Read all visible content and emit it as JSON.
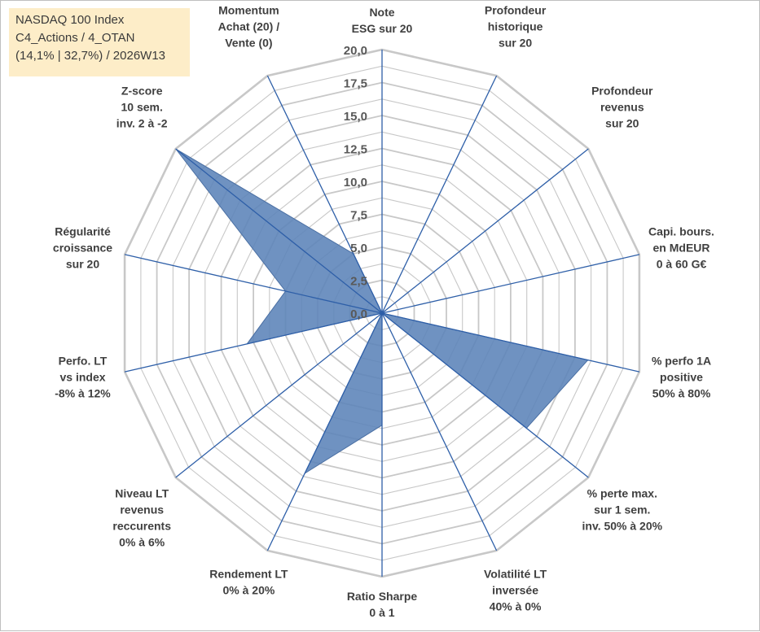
{
  "info_box": {
    "line1": "NASDAQ 100 Index",
    "line2": "C4_Actions / 4_OTAN",
    "line3": "(14,1% | 32,7%) / 2026W13"
  },
  "chart_data": {
    "type": "radar",
    "title": "",
    "rlim": [
      0,
      20
    ],
    "grid": true,
    "tick_values": [
      0,
      2.5,
      5,
      7.5,
      10,
      12.5,
      15,
      17.5,
      20
    ],
    "tick_labels": [
      "0,0",
      "2,5",
      "5,0",
      "7,5",
      "10,0",
      "12,5",
      "15,0",
      "17,5",
      "20,0"
    ],
    "axes": [
      {
        "label": [
          "Note",
          "ESG sur 20"
        ]
      },
      {
        "label": [
          "Profondeur",
          "historique",
          "sur 20"
        ]
      },
      {
        "label": [
          "Profondeur",
          "revenus",
          "sur 20"
        ]
      },
      {
        "label": [
          "Capi. bours.",
          "en MdEUR",
          "0 à 60 G€"
        ]
      },
      {
        "label": [
          "% perfo 1A",
          "positive",
          "50% à 80%"
        ]
      },
      {
        "label": [
          "% perte max.",
          "sur 1 sem.",
          "inv. 50% à 20%"
        ]
      },
      {
        "label": [
          "Volatilité LT",
          "inversée",
          "40% à 0%"
        ]
      },
      {
        "label": [
          "Ratio Sharpe",
          "0 à 1"
        ]
      },
      {
        "label": [
          "Rendement LT",
          "0% à 20%"
        ]
      },
      {
        "label": [
          "Niveau LT",
          "revenus",
          "reccurents",
          "0% à 6%"
        ]
      },
      {
        "label": [
          "Perfo. LT",
          "vs index",
          "-8% à 12%"
        ]
      },
      {
        "label": [
          "Régularité",
          "croissance",
          "sur 20"
        ]
      },
      {
        "label": [
          "Z-score",
          "10 sem.",
          "inv. 2 à -2"
        ]
      },
      {
        "label": [
          "Momentum",
          "Achat (20) /",
          "Vente (0)"
        ]
      }
    ],
    "series": [
      {
        "values": [
          0,
          0,
          0,
          0,
          16.0,
          14.0,
          0,
          8.5,
          13.5,
          0,
          10.5,
          7.5,
          20.0,
          5.0
        ],
        "fill": "#5b83b8",
        "stroke": "#4a6fa3"
      }
    ],
    "colors": {
      "grid": "#c8c8c8",
      "spoke": "#2e5fa8",
      "label": "#404040",
      "tick": "#595959"
    }
  }
}
